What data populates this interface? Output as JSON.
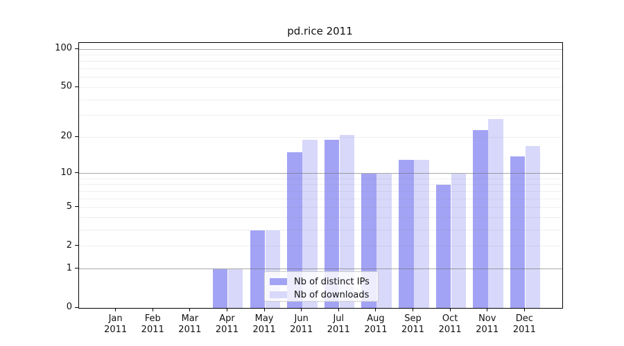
{
  "title": "pd.rice 2011",
  "colors": {
    "bar_distinct_ips": "#a3a3f5",
    "bar_downloads": "#d8d8fa",
    "grid_major": "#a8a8a8",
    "grid_minor": "#ededed",
    "axis": "#000000",
    "background": "#ffffff"
  },
  "chart_data": {
    "type": "bar",
    "title": "pd.rice 2011",
    "categories": [
      "Jan 2011",
      "Feb 2011",
      "Mar 2011",
      "Apr 2011",
      "May 2011",
      "Jun 2011",
      "Jul 2011",
      "Aug 2011",
      "Sep 2011",
      "Oct 2011",
      "Nov 2011",
      "Dec 2011"
    ],
    "series": [
      {
        "name": "Nb of distinct IPs",
        "color": "#a3a3f5",
        "values": [
          0,
          0,
          0,
          1,
          3,
          15,
          19,
          10,
          13,
          8,
          23,
          14
        ]
      },
      {
        "name": "Nb of downloads",
        "color": "#d8d8fa",
        "values": [
          0,
          0,
          0,
          1,
          3,
          19,
          21,
          10,
          13,
          10,
          28,
          17
        ]
      }
    ],
    "xlabel": "",
    "ylabel": "",
    "yscale": "log1p",
    "ylim": [
      0,
      112
    ],
    "yticks": [
      0,
      1,
      2,
      5,
      10,
      20,
      50,
      100
    ],
    "major_gridlines": [
      1,
      10,
      100
    ],
    "minor_gridlines": [
      2,
      3,
      4,
      5,
      6,
      7,
      8,
      9,
      20,
      30,
      40,
      50,
      60,
      70,
      80,
      90
    ],
    "grid": true,
    "legend_position": "lower-center-inside"
  }
}
